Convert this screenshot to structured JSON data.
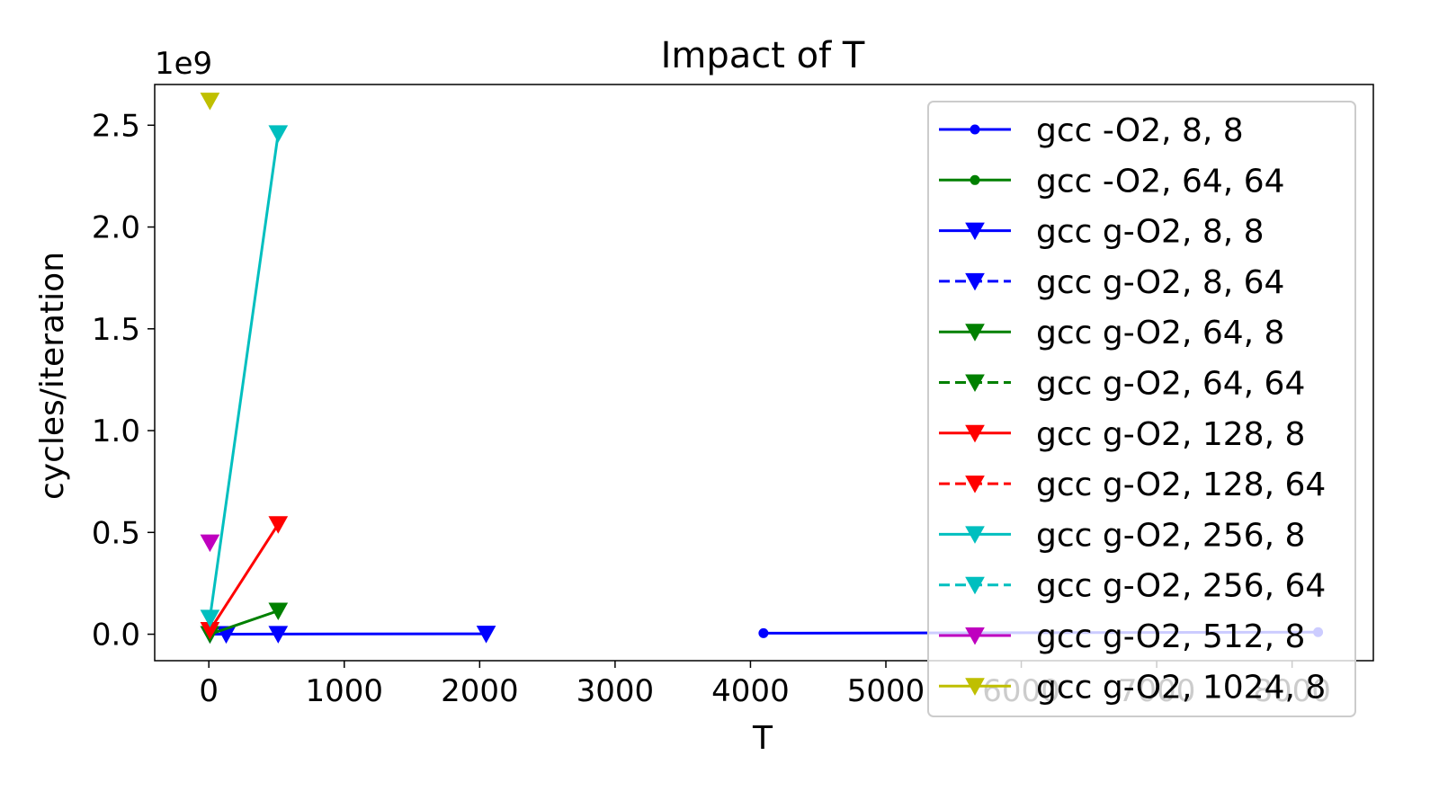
{
  "chart_data": {
    "type": "line",
    "title": "Impact of T",
    "xlabel": "T",
    "ylabel": "cycles/iteration",
    "y_offset_label": "1e9",
    "xlim": [
      -400,
      8600
    ],
    "ylim": [
      -0.13,
      2.7
    ],
    "xticks": [
      0,
      1000,
      2000,
      3000,
      4000,
      5000,
      6000,
      7000,
      8000
    ],
    "xtick_labels": [
      "0",
      "1000",
      "2000",
      "3000",
      "4000",
      "5000",
      "6000",
      "7000",
      "8000"
    ],
    "yticks": [
      0.0,
      0.5,
      1.0,
      1.5,
      2.0,
      2.5
    ],
    "ytick_labels": [
      "0.0",
      "0.5",
      "1.0",
      "1.5",
      "2.0",
      "2.5"
    ],
    "legend_position": "upper-right",
    "grid": false,
    "series": [
      {
        "name": "gcc -O2, 8, 8",
        "color": "#0000ff",
        "line": "solid",
        "marker": "dot",
        "points": [
          [
            4096,
            0.005
          ],
          [
            8192,
            0.01
          ]
        ]
      },
      {
        "name": "gcc -O2, 64, 64",
        "color": "#008000",
        "line": "solid",
        "marker": "dot",
        "points": []
      },
      {
        "name": "gcc g-O2, 8, 8",
        "color": "#0000ff",
        "line": "solid",
        "marker": "triangle-down",
        "points": [
          [
            8,
            0.0
          ],
          [
            128,
            0.0
          ],
          [
            512,
            0.001
          ],
          [
            2048,
            0.002
          ]
        ]
      },
      {
        "name": "gcc g-O2, 8, 64",
        "color": "#0000ff",
        "line": "dashed",
        "marker": "triangle-down",
        "points": []
      },
      {
        "name": "gcc g-O2, 64, 8",
        "color": "#008000",
        "line": "solid",
        "marker": "triangle-down",
        "points": [
          [
            8,
            0.0
          ],
          [
            512,
            0.115
          ]
        ]
      },
      {
        "name": "gcc g-O2, 64, 64",
        "color": "#008000",
        "line": "dashed",
        "marker": "triangle-down",
        "points": []
      },
      {
        "name": "gcc g-O2, 128, 8",
        "color": "#ff0000",
        "line": "solid",
        "marker": "triangle-down",
        "points": [
          [
            8,
            0.02
          ],
          [
            512,
            0.54
          ]
        ]
      },
      {
        "name": "gcc g-O2, 128, 64",
        "color": "#ff0000",
        "line": "dashed",
        "marker": "triangle-down",
        "points": []
      },
      {
        "name": "gcc g-O2, 256, 8",
        "color": "#00bfbf",
        "line": "solid",
        "marker": "triangle-down",
        "points": [
          [
            8,
            0.08
          ],
          [
            512,
            2.46
          ]
        ]
      },
      {
        "name": "gcc g-O2, 256, 64",
        "color": "#00bfbf",
        "line": "dashed",
        "marker": "triangle-down",
        "points": []
      },
      {
        "name": "gcc g-O2, 512, 8",
        "color": "#bf00bf",
        "line": "solid",
        "marker": "triangle-down",
        "points": [
          [
            8,
            0.45
          ]
        ]
      },
      {
        "name": "gcc g-O2, 1024, 8",
        "color": "#bfbf00",
        "line": "solid",
        "marker": "triangle-down",
        "points": [
          [
            8,
            2.62
          ]
        ]
      }
    ]
  }
}
